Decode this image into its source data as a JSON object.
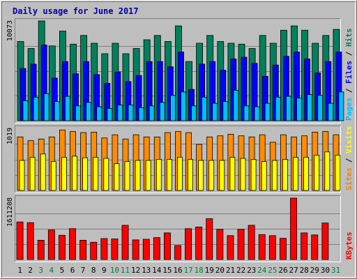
{
  "chart_data": {
    "type": "bar",
    "title": "Daily usage for June 2017",
    "x": {
      "labels": [
        "1",
        "2",
        "3",
        "4",
        "5",
        "6",
        "7",
        "8",
        "9",
        "10",
        "11",
        "12",
        "13",
        "14",
        "15",
        "16",
        "17",
        "18",
        "19",
        "20",
        "21",
        "22",
        "23",
        "24",
        "25",
        "26",
        "27",
        "28",
        "29",
        "30",
        "31"
      ],
      "weekend_days": [
        3,
        4,
        10,
        11,
        17,
        18,
        24,
        25,
        31
      ],
      "normal_color": "#000000",
      "weekend_color": "#007f3f"
    },
    "panels": [
      {
        "name": "hits-files-pages",
        "ytick_label": "10073",
        "ylim": [
          0,
          11467
        ],
        "side_legend": [
          {
            "text": "Pages",
            "color": "#00c0ff"
          },
          {
            "text": " / ",
            "color": "#000000"
          },
          {
            "text": "Files",
            "color": "#0000ff"
          },
          {
            "text": " / ",
            "color": "#000000"
          },
          {
            "text": "Hits",
            "color": "#007f5f"
          }
        ],
        "series": [
          {
            "name": "Hits",
            "color": "#00805c",
            "values": [
              9100,
              8300,
              11467,
              8600,
              10300,
              8800,
              9800,
              8900,
              7700,
              8900,
              7700,
              8300,
              9300,
              9800,
              9100,
              10900,
              6800,
              8900,
              9800,
              9100,
              8900,
              8800,
              8300,
              9800,
              8900,
              10400,
              10900,
              10400,
              8900,
              9800,
              10500
            ]
          },
          {
            "name": "Files",
            "color": "#0000ff",
            "values": [
              6000,
              6500,
              8700,
              4900,
              6800,
              5400,
              6800,
              5300,
              4300,
              5600,
              4500,
              5200,
              6800,
              6800,
              6200,
              7900,
              3600,
              6500,
              6800,
              5800,
              7100,
              7300,
              6600,
              5100,
              6400,
              7400,
              7900,
              7100,
              5500,
              6800,
              7900
            ]
          },
          {
            "name": "Pages",
            "color": "#00bfff",
            "values": [
              2300,
              2700,
              3100,
              2200,
              2800,
              1700,
              2100,
              1600,
              1400,
              1800,
              1800,
              1500,
              1700,
              2100,
              2900,
              3300,
              1700,
              2700,
              2000,
              2200,
              3500,
              1700,
              1600,
              2000,
              2700,
              2800,
              2600,
              3000,
              2900,
              2000,
              3300
            ]
          }
        ]
      },
      {
        "name": "visits-sites",
        "ytick_label": "1019",
        "ylim": [
          0,
          1160
        ],
        "side_legend": [
          {
            "text": "Sites",
            "color": "#ff8000"
          },
          {
            "text": " / ",
            "color": "#000000"
          },
          {
            "text": "Visits",
            "color": "#ffff00"
          }
        ],
        "series": [
          {
            "name": "Visits",
            "color": "#ff8c00",
            "values": [
              1000,
              930,
              960,
              1000,
              1130,
              1100,
              1080,
              1090,
              980,
              1040,
              960,
              1040,
              1000,
              1000,
              1080,
              1100,
              1080,
              860,
              1000,
              1020,
              1050,
              1020,
              1000,
              1040,
              900,
              1040,
              1000,
              1020,
              1090,
              1100,
              1040
            ]
          },
          {
            "name": "Sites",
            "color": "#ffff00",
            "values": [
              560,
              620,
              680,
              540,
              620,
              640,
              610,
              620,
              600,
              500,
              540,
              560,
              560,
              580,
              580,
              620,
              580,
              560,
              560,
              560,
              620,
              600,
              580,
              540,
              560,
              580,
              620,
              620,
              660,
              720,
              660
            ]
          }
        ]
      },
      {
        "name": "kbytes",
        "ytick_label": "1611208",
        "ylim": [
          0,
          1850000
        ],
        "side_legend": [
          {
            "text": "KBytes",
            "color": "#ff0000"
          }
        ],
        "series": [
          {
            "name": "KBytes",
            "color": "#ff0000",
            "values": [
              1130000,
              1110000,
              580000,
              890000,
              730000,
              930000,
              580000,
              520000,
              630000,
              620000,
              1030000,
              590000,
              610000,
              660000,
              800000,
              420000,
              930000,
              980000,
              1230000,
              910000,
              720000,
              910000,
              1030000,
              750000,
              720000,
              640000,
              1850000,
              800000,
              740000,
              1100000,
              0
            ]
          }
        ]
      }
    ]
  }
}
